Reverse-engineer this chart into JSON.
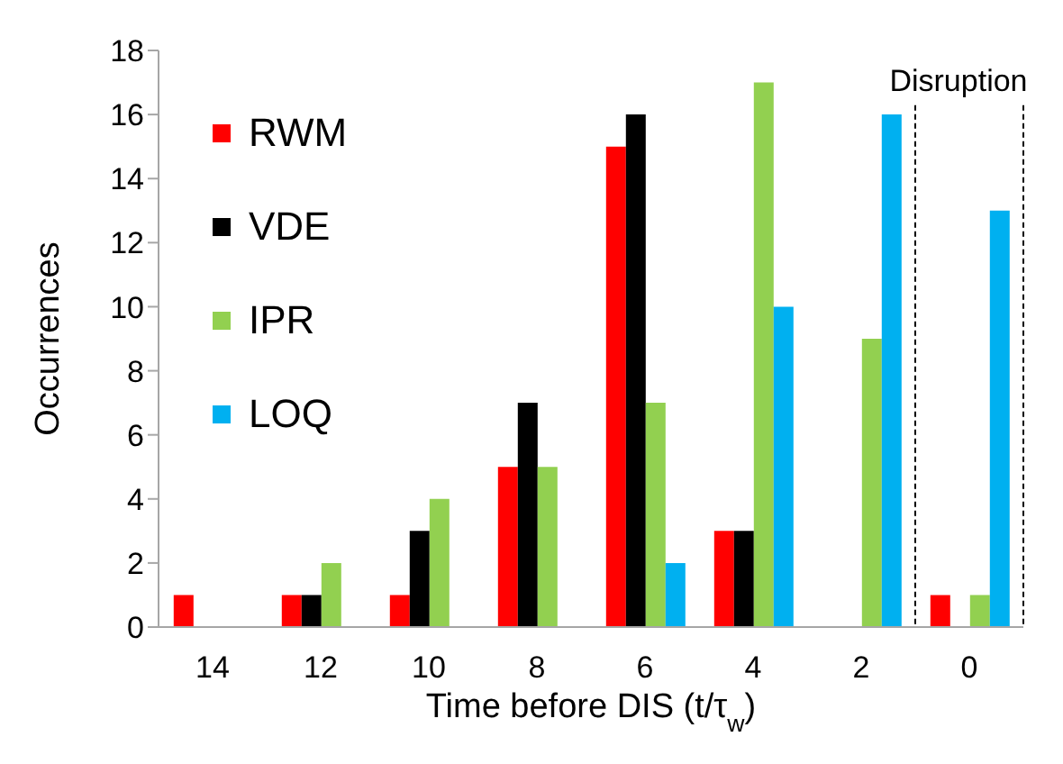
{
  "chart_data": {
    "type": "bar",
    "xlabel": "Time before DIS (t/τ$_{w}$)",
    "ylabel": "Occurrences",
    "categories": [
      "14",
      "12",
      "10",
      "8",
      "6",
      "4",
      "2",
      "0"
    ],
    "series": [
      {
        "name": "RWM",
        "color": "#ff0000",
        "values": [
          1,
          1,
          1,
          5,
          15,
          3,
          0,
          1
        ]
      },
      {
        "name": "VDE",
        "color": "#000000",
        "values": [
          0,
          1,
          3,
          7,
          16,
          3,
          0,
          0
        ]
      },
      {
        "name": "IPR",
        "color": "#92d050",
        "values": [
          0,
          2,
          4,
          5,
          7,
          17,
          9,
          1
        ]
      },
      {
        "name": "LOQ",
        "color": "#00b0f0",
        "values": [
          0,
          0,
          0,
          0,
          2,
          10,
          16,
          13
        ]
      }
    ],
    "ylim": [
      0,
      18
    ],
    "yticks": [
      0,
      2,
      4,
      6,
      8,
      10,
      12,
      14,
      16,
      18
    ],
    "annotations": [
      "Disruption"
    ],
    "legend": "top left"
  }
}
